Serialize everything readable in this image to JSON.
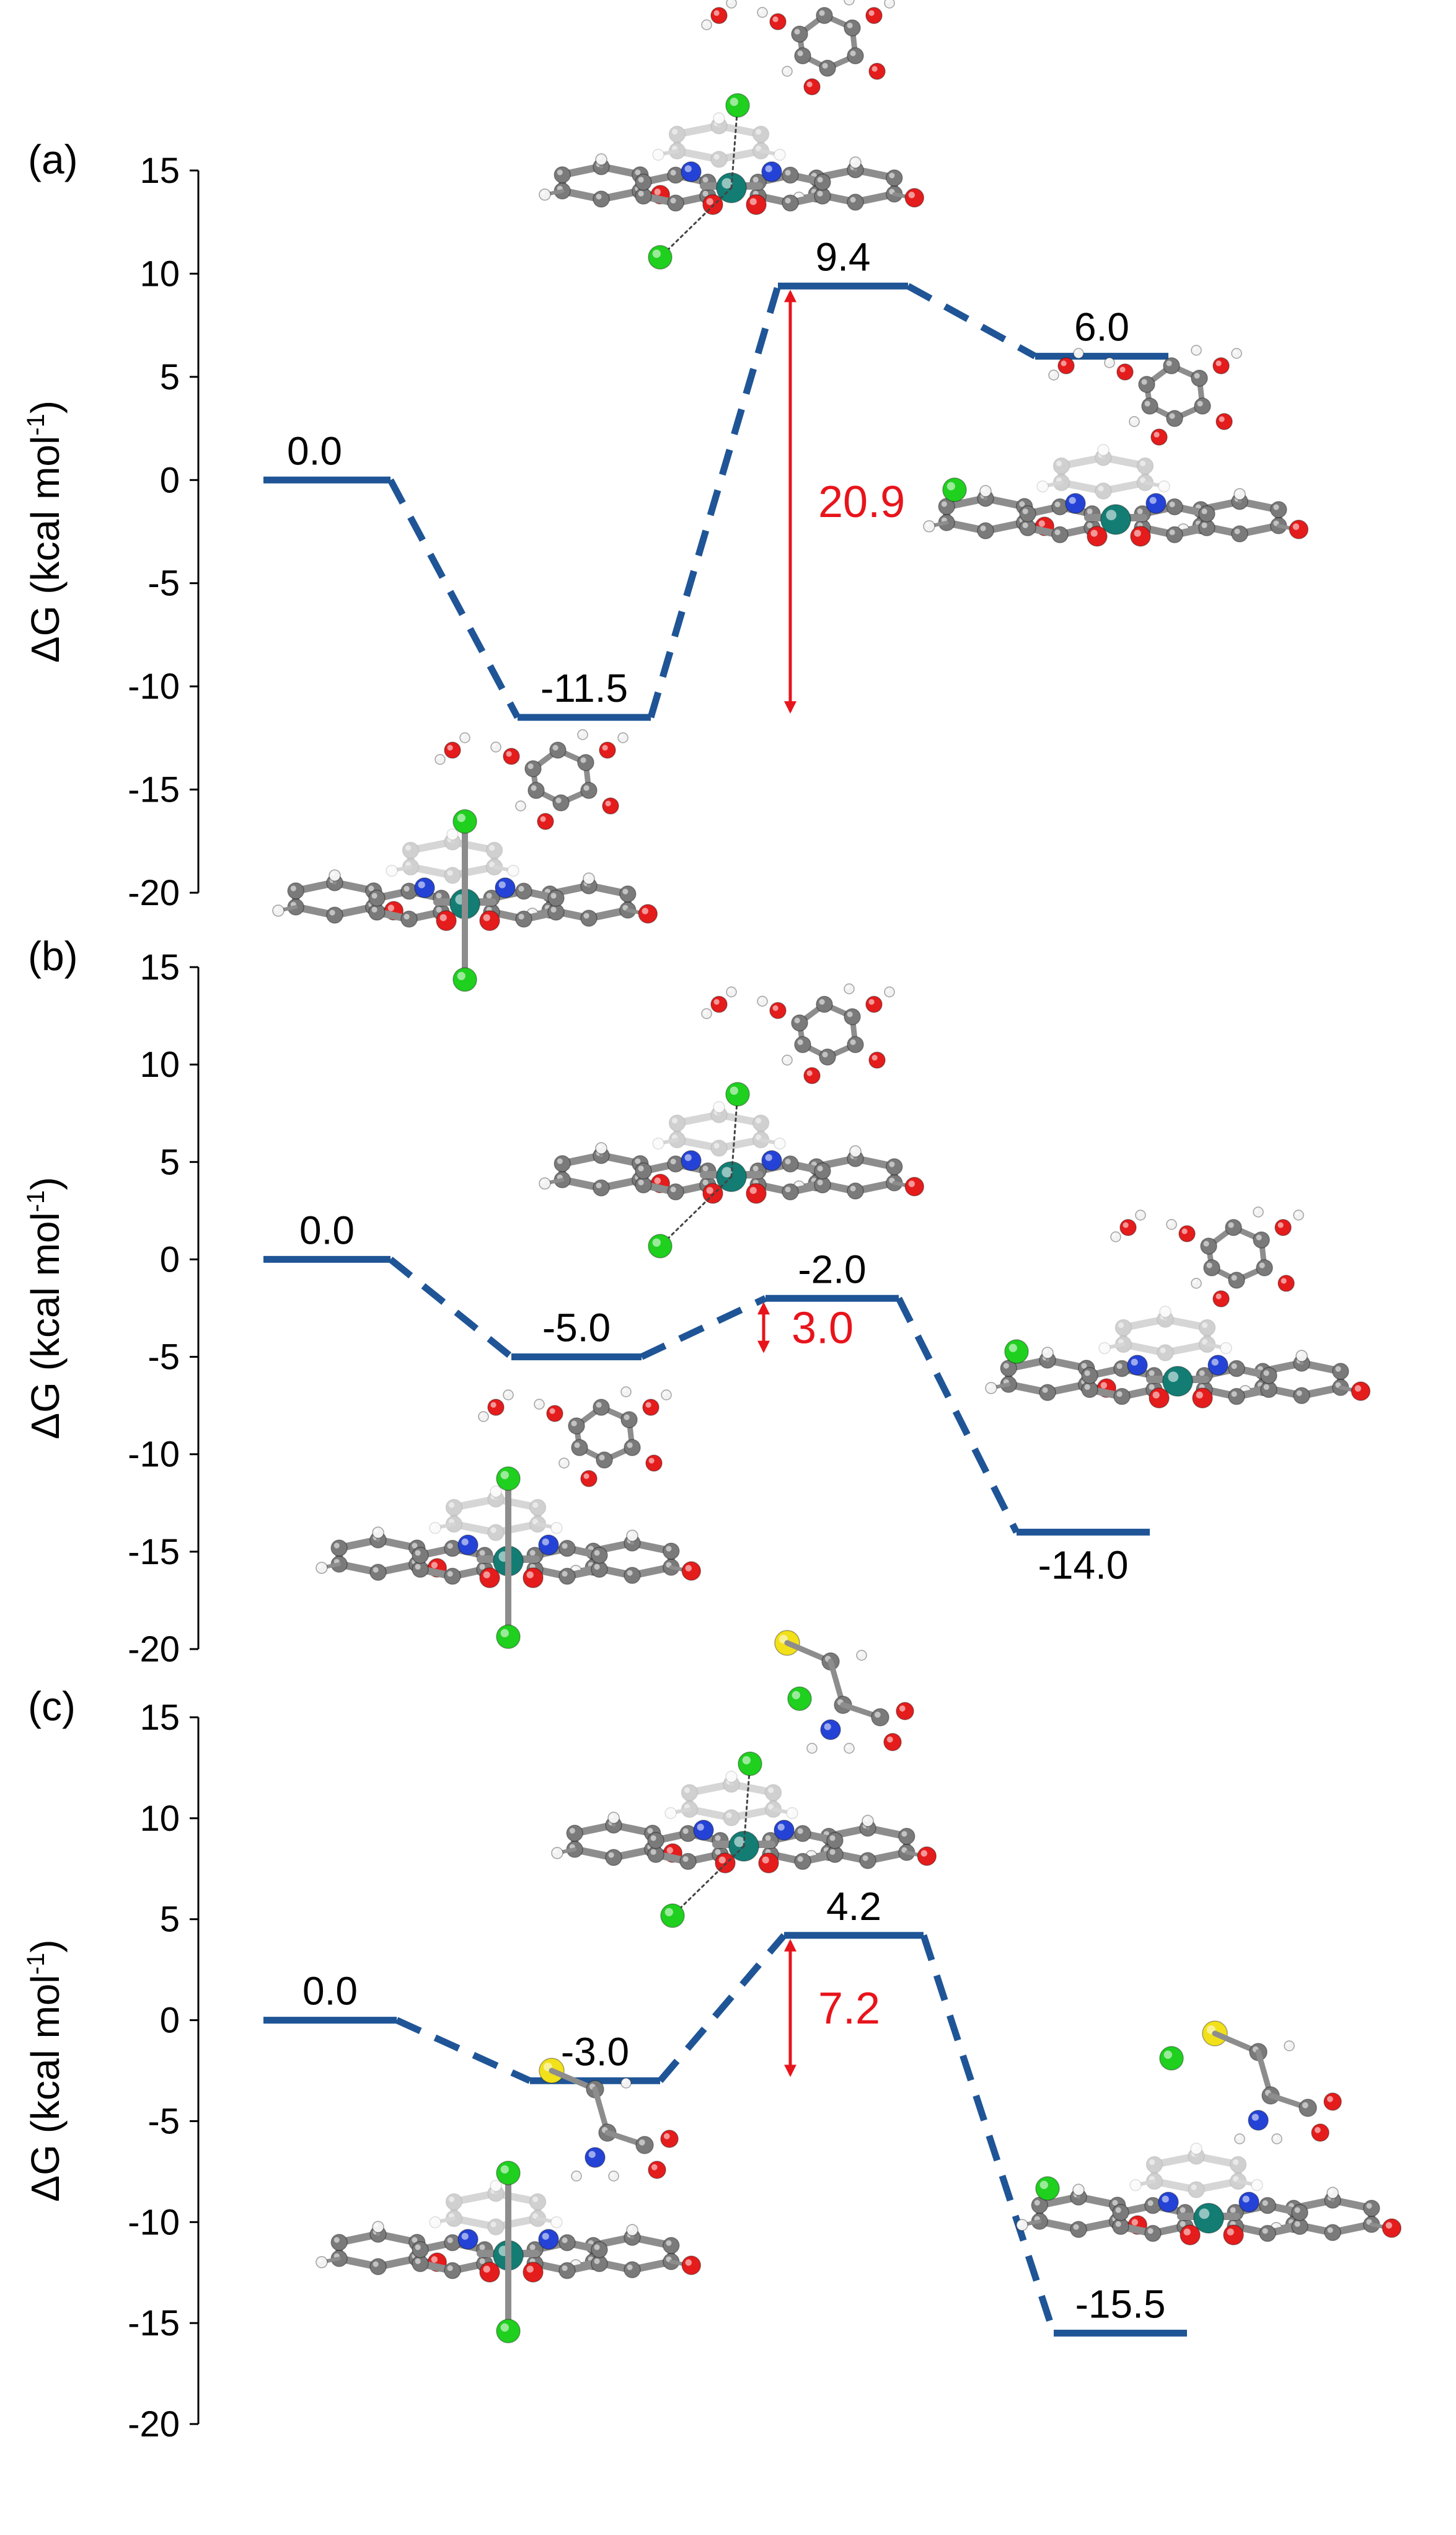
{
  "colors": {
    "path": "#1f5596",
    "barrier": "#e8141b",
    "axis": "#000000",
    "carbon": "#7a7a7a",
    "hydrogen": "#f2f2f2",
    "oxygen": "#e51c1c",
    "nitrogen": "#2443d6",
    "ruthenium": "#137d74",
    "chlorine": "#1fd01f",
    "sulfur": "#f2e01a"
  },
  "chart_data": [
    {
      "type": "line",
      "panel_label": "(a)",
      "ylabel": "ΔG (kcal mol",
      "ylabel_sup": "-1",
      "ylabel_end": ")",
      "ylim": [
        -20,
        15
      ],
      "yticks": [
        15,
        10,
        5,
        0,
        -5,
        -10,
        -15,
        -20
      ],
      "ytick_labels": [
        "15",
        "10",
        "5",
        "0",
        "-5",
        "-10",
        "-15",
        "-20"
      ],
      "levels": [
        0.0,
        -11.5,
        9.4,
        6.0
      ],
      "level_labels": [
        "0.0",
        "-11.5",
        "9.4",
        "6.0"
      ],
      "barrier": {
        "value": 20.9,
        "label": "20.9",
        "from": -11.5,
        "to": 9.4
      },
      "structure_icons": [
        "reactant-complex-structure-icon",
        "transition-state-structure-icon",
        "product-structure-icon"
      ]
    },
    {
      "type": "line",
      "panel_label": "(b)",
      "ylabel": "ΔG (kcal mol",
      "ylabel_sup": "-1",
      "ylabel_end": ")",
      "ylim": [
        -20,
        15
      ],
      "yticks": [
        15,
        10,
        5,
        0,
        -5,
        -10,
        -15,
        -20
      ],
      "ytick_labels": [
        "15",
        "10",
        "5",
        "0",
        "-5",
        "-10",
        "-15",
        "-20"
      ],
      "levels": [
        0.0,
        -5.0,
        -2.0,
        -14.0
      ],
      "level_labels": [
        "0.0",
        "-5.0",
        "-2.0",
        "-14.0"
      ],
      "barrier": {
        "value": 3.0,
        "label": "3.0",
        "from": -5.0,
        "to": -2.0
      },
      "structure_icons": [
        "reactant-complex-structure-icon",
        "transition-state-structure-icon",
        "product-structure-icon"
      ]
    },
    {
      "type": "line",
      "panel_label": "(c)",
      "ylabel": "ΔG (kcal mol",
      "ylabel_sup": "-1",
      "ylabel_end": ")",
      "ylim": [
        -20,
        15
      ],
      "yticks": [
        15,
        10,
        5,
        0,
        -5,
        -10,
        -15,
        -20
      ],
      "ytick_labels": [
        "15",
        "10",
        "5",
        "0",
        "-5",
        "-10",
        "-15",
        "-20"
      ],
      "levels": [
        0.0,
        -3.0,
        4.2,
        -15.5
      ],
      "level_labels": [
        "0.0",
        "-3.0",
        "4.2",
        "-15.5"
      ],
      "barrier": {
        "value": 7.2,
        "label": "7.2",
        "from": -3.0,
        "to": 4.2
      },
      "structure_icons": [
        "reactant-complex-structure-icon",
        "transition-state-structure-icon",
        "product-structure-icon"
      ]
    }
  ]
}
